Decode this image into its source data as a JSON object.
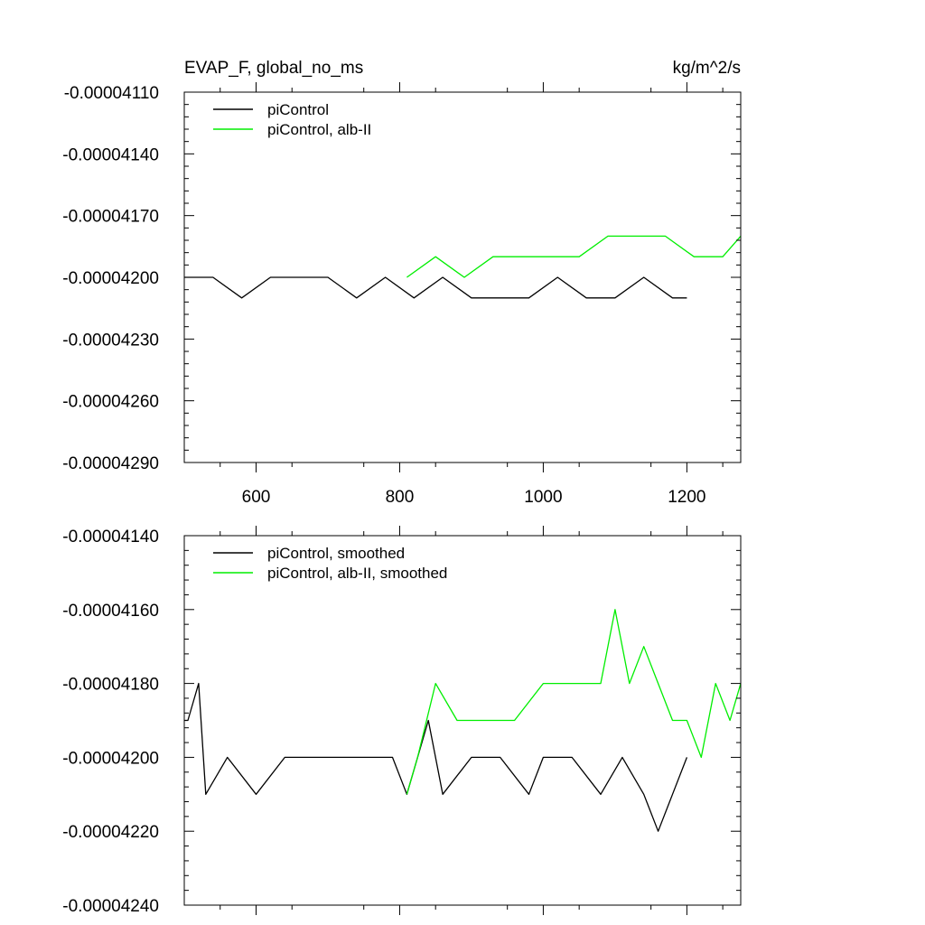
{
  "chart_data": [
    {
      "type": "line",
      "title": "EVAP_F, global_no_ms",
      "units": "kg/m^2/s",
      "xlim": [
        500,
        1275
      ],
      "ylim": [
        -4.29e-05,
        -4.11e-05
      ],
      "x_ticks": [
        600,
        800,
        1000,
        1200
      ],
      "x_tick_labels": [
        "600",
        "800",
        "1000",
        "1200"
      ],
      "y_ticks": [
        -4.11e-05,
        -4.14e-05,
        -4.17e-05,
        -4.2e-05,
        -4.23e-05,
        -4.26e-05,
        -4.29e-05
      ],
      "y_tick_labels": [
        "-0.00004110",
        "-0.00004140",
        "-0.00004170",
        "-0.00004200",
        "-0.00004230",
        "-0.00004260",
        "-0.00004290"
      ],
      "legend_position": "top-left",
      "series": [
        {
          "name": "piControl",
          "color": "#000000",
          "x": [
            500,
            540,
            580,
            620,
            660,
            700,
            740,
            780,
            820,
            860,
            900,
            940,
            980,
            1020,
            1060,
            1100,
            1140,
            1180,
            1200
          ],
          "values": [
            -4.2e-05,
            -4.2e-05,
            -4.21e-05,
            -4.2e-05,
            -4.2e-05,
            -4.2e-05,
            -4.21e-05,
            -4.2e-05,
            -4.21e-05,
            -4.2e-05,
            -4.21e-05,
            -4.21e-05,
            -4.21e-05,
            -4.2e-05,
            -4.21e-05,
            -4.21e-05,
            -4.2e-05,
            -4.21e-05,
            -4.21e-05
          ]
        },
        {
          "name": "piControl, alb-II",
          "color": "#00ee00",
          "x": [
            810,
            850,
            890,
            930,
            970,
            1010,
            1050,
            1090,
            1130,
            1170,
            1210,
            1250,
            1275
          ],
          "values": [
            -4.2e-05,
            -4.19e-05,
            -4.2e-05,
            -4.19e-05,
            -4.19e-05,
            -4.19e-05,
            -4.19e-05,
            -4.18e-05,
            -4.18e-05,
            -4.18e-05,
            -4.19e-05,
            -4.19e-05,
            -4.18e-05
          ]
        }
      ]
    },
    {
      "type": "line",
      "xlim": [
        500,
        1275
      ],
      "ylim": [
        -4.24e-05,
        -4.14e-05
      ],
      "x_ticks": [
        600,
        800,
        1000,
        1200
      ],
      "y_ticks": [
        -4.14e-05,
        -4.16e-05,
        -4.18e-05,
        -4.2e-05,
        -4.22e-05,
        -4.24e-05
      ],
      "y_tick_labels": [
        "-0.00004140",
        "-0.00004160",
        "-0.00004180",
        "-0.00004200",
        "-0.00004220",
        "-0.00004240"
      ],
      "legend_position": "top-left",
      "series": [
        {
          "name": "piControl, smoothed",
          "color": "#000000",
          "x": [
            500,
            505,
            520,
            530,
            560,
            600,
            640,
            690,
            740,
            790,
            810,
            840,
            860,
            900,
            940,
            980,
            1000,
            1040,
            1080,
            1110,
            1140,
            1160,
            1180,
            1200
          ],
          "values": [
            -4.19e-05,
            -4.19e-05,
            -4.18e-05,
            -4.21e-05,
            -4.2e-05,
            -4.21e-05,
            -4.2e-05,
            -4.2e-05,
            -4.2e-05,
            -4.2e-05,
            -4.21e-05,
            -4.19e-05,
            -4.21e-05,
            -4.2e-05,
            -4.2e-05,
            -4.21e-05,
            -4.2e-05,
            -4.2e-05,
            -4.21e-05,
            -4.2e-05,
            -4.21e-05,
            -4.22e-05,
            -4.21e-05,
            -4.2e-05
          ]
        },
        {
          "name": "piControl, alb-II, smoothed",
          "color": "#00ee00",
          "x": [
            810,
            825,
            850,
            880,
            920,
            960,
            1000,
            1040,
            1080,
            1100,
            1120,
            1140,
            1160,
            1180,
            1200,
            1220,
            1240,
            1260,
            1275
          ],
          "values": [
            -4.21e-05,
            -4.2e-05,
            -4.18e-05,
            -4.19e-05,
            -4.19e-05,
            -4.19e-05,
            -4.18e-05,
            -4.18e-05,
            -4.18e-05,
            -4.16e-05,
            -4.18e-05,
            -4.17e-05,
            -4.18e-05,
            -4.19e-05,
            -4.19e-05,
            -4.2e-05,
            -4.18e-05,
            -4.19e-05,
            -4.18e-05
          ]
        }
      ]
    }
  ]
}
